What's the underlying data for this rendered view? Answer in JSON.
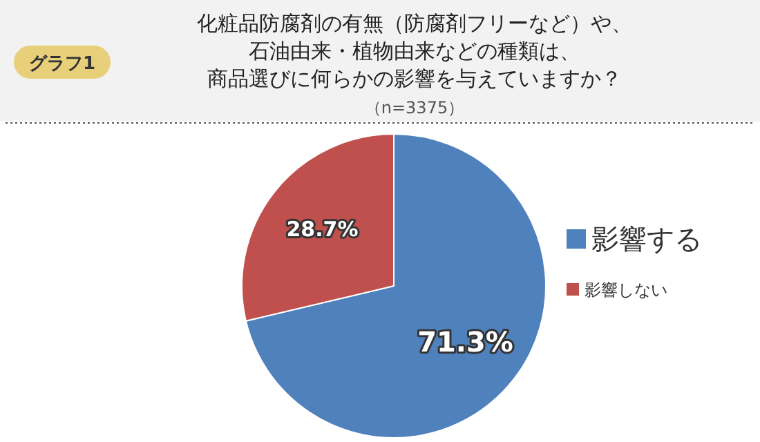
{
  "chart_data": {
    "type": "pie",
    "title": "化粧品防腐剤の有無（防腐剤フリーなど）や、石油由来・植物由来などの種類は、商品選びに何らかの影響を与えていますか？",
    "subtitle": "（n=3375）",
    "annotations": [
      "グラフ1"
    ],
    "categories": [
      "影響する",
      "影響しない"
    ],
    "values": [
      71.3,
      28.7
    ],
    "colors": [
      "#4f81bd",
      "#c0504d"
    ],
    "value_labels": [
      "71.3%",
      "28.7%"
    ],
    "legend": "right"
  }
}
